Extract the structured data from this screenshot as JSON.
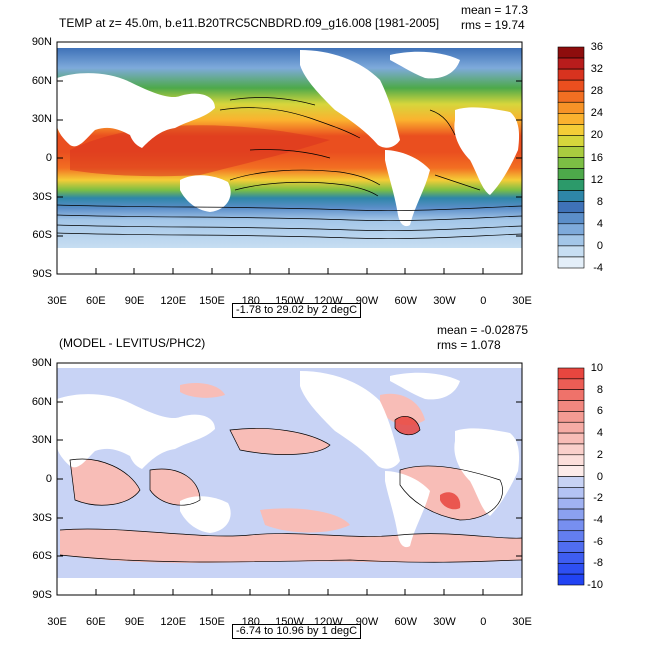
{
  "panels": [
    {
      "title": "TEMP at z=  45.0m, b.e11.B20TRC5CNBDRD.f09_g16.008 [1981-2005]",
      "mean": "mean = 17.3",
      "rms": "rms = 19.74",
      "range_note": "-1.78 to 29.02 by 2 degC",
      "lat_labels": [
        "90N",
        "60N",
        "30N",
        "0",
        "30S",
        "60S",
        "90S"
      ],
      "lon_labels": [
        "30E",
        "60E",
        "90E",
        "120E",
        "150E",
        "180",
        "150W",
        "120W",
        "90W",
        "60W",
        "30W",
        "0",
        "30E"
      ],
      "colorbar_labels": [
        "36",
        "32",
        "28",
        "24",
        "20",
        "16",
        "12",
        "8",
        "4",
        "0",
        "-4"
      ],
      "colorbar_colors": [
        "#8e0d0d",
        "#b81c1c",
        "#d8331f",
        "#ea4f1f",
        "#f26f22",
        "#f79327",
        "#fbb22f",
        "#f5cd37",
        "#d6d63c",
        "#a9cc3f",
        "#7cbf44",
        "#4da94a",
        "#2c9a6a",
        "#2e86a8",
        "#3f72b8",
        "#5b8ec9",
        "#7eaadb",
        "#a3c6e8",
        "#c7def2",
        "#e4eff9"
      ]
    },
    {
      "title": "(MODEL - LEVITUS/PHC2)",
      "mean": "mean = -0.02875",
      "rms": "rms = 1.078",
      "range_note": "-6.74 to 10.96 by 1 degC",
      "lat_labels": [
        "90N",
        "60N",
        "30N",
        "0",
        "30S",
        "60S",
        "90S"
      ],
      "lon_labels": [
        "30E",
        "60E",
        "90E",
        "120E",
        "150E",
        "180",
        "150W",
        "120W",
        "90W",
        "60W",
        "30W",
        "0",
        "30E"
      ],
      "colorbar_labels": [
        "10",
        "8",
        "6",
        "4",
        "2",
        "0",
        "-2",
        "-4",
        "-6",
        "-8",
        "-10"
      ],
      "colorbar_colors": [
        "#e8463f",
        "#ec5d55",
        "#ef726a",
        "#f2877f",
        "#f49b93",
        "#f6aca5",
        "#f8bdb7",
        "#fad0cb",
        "#fcdfdb",
        "#fdecea",
        "#c8d3f5",
        "#b4c3f4",
        "#a0b2f2",
        "#8ba1f0",
        "#778ff0",
        "#637ef0",
        "#506df0",
        "#3e5df1",
        "#2e4ff2",
        "#2143f3"
      ]
    }
  ]
}
